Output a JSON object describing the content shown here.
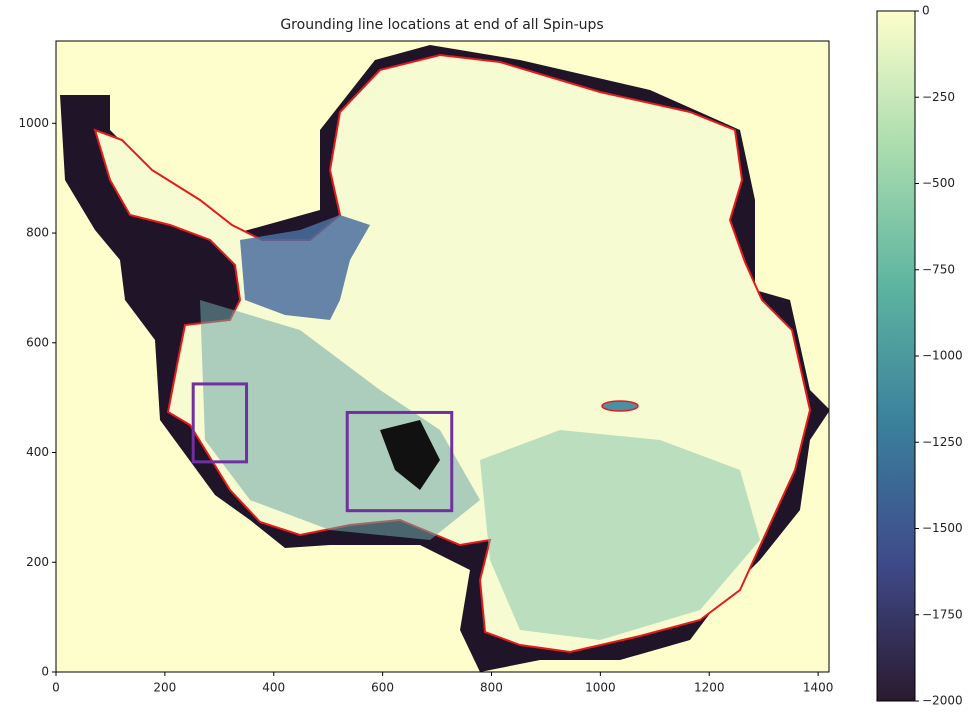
{
  "chart_data": {
    "type": "image",
    "title": "Grounding line locations at end of all Spin-ups",
    "xlim": [
      0,
      1420
    ],
    "ylim": [
      0,
      1150
    ],
    "xticks": [
      0,
      200,
      400,
      600,
      800,
      1000,
      1200,
      1400
    ],
    "yticks": [
      0,
      200,
      400,
      600,
      800,
      1000
    ],
    "boxes": [
      {
        "x": [
          252,
          350
        ],
        "y": [
          383,
          525
        ]
      },
      {
        "x": [
          535,
          727
        ],
        "y": [
          294,
          473
        ]
      }
    ],
    "box_color": "#7030a0",
    "line_color": "#e41a1c",
    "colorbar": {
      "lim": [
        -2000,
        0
      ],
      "ticks": [
        {
          "value": 0,
          "label": "0"
        },
        {
          "value": -250,
          "label": "−250"
        },
        {
          "value": -500,
          "label": "−500"
        },
        {
          "value": -750,
          "label": "−750"
        },
        {
          "value": -1000,
          "label": "−1000"
        },
        {
          "value": -1250,
          "label": "−1250"
        },
        {
          "value": -1500,
          "label": "−1500"
        },
        {
          "value": -1750,
          "label": "−1750"
        },
        {
          "value": -2000,
          "label": "−2000"
        }
      ],
      "colors": [
        "#2a1a2e",
        "#3f4a8a",
        "#3a7f9c",
        "#5db4a0",
        "#a9dcae",
        "#fdfecc"
      ]
    }
  }
}
